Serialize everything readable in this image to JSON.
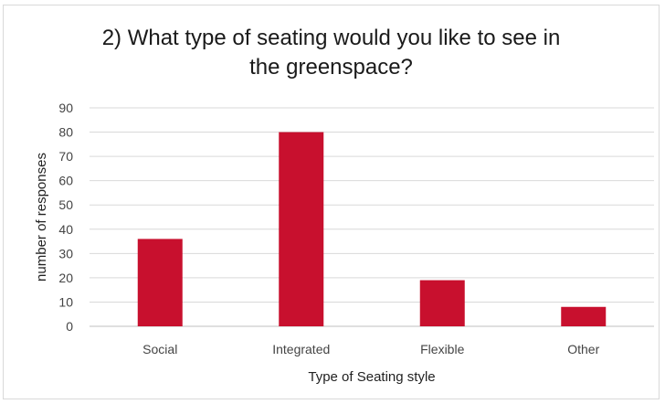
{
  "chart_data": {
    "type": "bar",
    "title_lines": [
      "2) What type of seating would you like to see in",
      "the greenspace?"
    ],
    "categories": [
      "Social",
      "Integrated",
      "Flexible",
      "Other"
    ],
    "values": [
      36,
      80,
      19,
      8
    ],
    "xlabel": "Type of Seating style",
    "ylabel": "number of responses",
    "ylim": [
      0,
      90
    ],
    "yticks": [
      "0",
      "10",
      "20",
      "30",
      "40",
      "50",
      "60",
      "70",
      "80",
      "90"
    ],
    "grid": true,
    "bar_color": "#c8102e",
    "grid_color": "#d9d9d9"
  }
}
